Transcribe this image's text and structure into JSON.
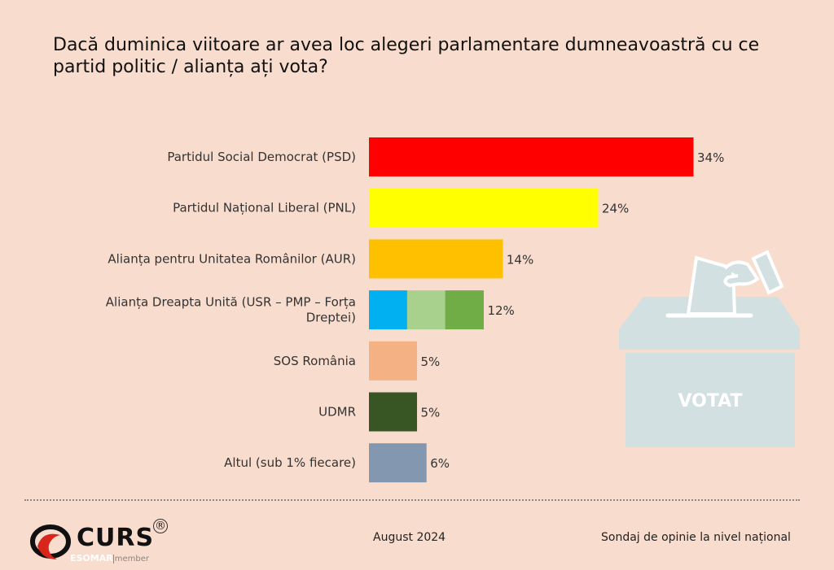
{
  "chart_data": {
    "type": "bar",
    "orientation": "horizontal",
    "title": "Dacă duminica viitoare ar avea loc alegeri parlamentare dumneavoastră cu ce partid politic / alianța ați vota?",
    "categories": [
      "Partidul Social Democrat (PSD)",
      "Partidul Național Liberal (PNL)",
      "Alianța pentru Unitatea Românilor (AUR)",
      "Alianța Dreapta Unită (USR – PMP – Forța Dreptei)",
      "SOS România",
      "UDMR",
      "Altul (sub 1% fiecare)"
    ],
    "label_lines": [
      [
        "Partidul Social Democrat (PSD)"
      ],
      [
        "Partidul Național Liberal (PNL)"
      ],
      [
        "Alianța pentru Unitatea Românilor (AUR)"
      ],
      [
        "Alianța Dreapta Unită (USR – PMP – Forța",
        "Dreptei)"
      ],
      [
        "SOS România"
      ],
      [
        "UDMR"
      ],
      [
        "Altul (sub 1% fiecare)"
      ]
    ],
    "values": [
      34,
      24,
      14,
      12,
      5,
      5,
      6
    ],
    "value_labels": [
      "34%",
      "24%",
      "14%",
      "12%",
      "5%",
      "5%",
      "6%"
    ],
    "colors": [
      [
        "#ff0000"
      ],
      [
        "#ffff00"
      ],
      [
        "#ffc000"
      ],
      [
        "#00b0f0",
        "#a9d18e",
        "#70ad47"
      ],
      [
        "#f4b183"
      ],
      [
        "#375623"
      ],
      [
        "#8497b0"
      ]
    ],
    "xlim": [
      0,
      34
    ],
    "grid": false
  },
  "illustration": {
    "ballot_box_text": "VOTAT"
  },
  "footer": {
    "logo_text": "CURS",
    "logo_sub": "ESOMAR",
    "logo_member": "member",
    "date": "August 2024",
    "note": "Sondaj de opinie la nivel național"
  }
}
